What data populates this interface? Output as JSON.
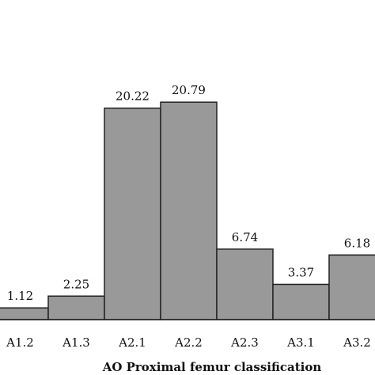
{
  "chart_data": {
    "type": "bar",
    "categories": [
      "A1.2",
      "A1.3",
      "A2.1",
      "A2.2",
      "A2.3",
      "A3.1",
      "A3.2"
    ],
    "values": [
      1.12,
      2.25,
      20.22,
      20.79,
      6.74,
      3.37,
      6.18
    ],
    "data_labels": [
      "1.12",
      "2.25",
      "20.22",
      "20.79",
      "6.74",
      "3.37",
      "6.18"
    ],
    "title": "",
    "xlabel": "AO Proximal femur classification",
    "ylabel": "",
    "ylim": [
      0,
      25
    ],
    "grid": false,
    "legend": "none",
    "bar_color": "#999999",
    "edge_color": "#222222"
  }
}
